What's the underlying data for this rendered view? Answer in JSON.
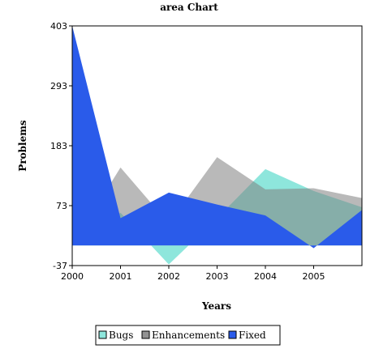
{
  "chart_data": {
    "type": "area",
    "title": "area Chart",
    "xlabel": "Years",
    "ylabel": "Problems",
    "x": [
      2000,
      2001,
      2002,
      2003,
      2004,
      2005,
      2006
    ],
    "x_tick_labels": [
      "2000",
      "2001",
      "2002",
      "2003",
      "2004",
      "2005"
    ],
    "y_ticks": [
      -37,
      73,
      183,
      293,
      403
    ],
    "y_tick_labels": [
      "-37",
      "73",
      "183",
      "293",
      "403"
    ],
    "ylim": [
      -37,
      403
    ],
    "xlim": [
      2000,
      2006
    ],
    "baseline": 0,
    "grid": false,
    "legend_position": "bottom",
    "series": [
      {
        "name": "Bugs",
        "color": "#8ee6dc",
        "opacity": 1,
        "values": [
          0,
          60,
          -35,
          50,
          140,
          100,
          70
        ]
      },
      {
        "name": "Enhancements",
        "color": "#7f7f7f",
        "opacity": 0.55,
        "values": [
          0,
          143,
          40,
          162,
          103,
          105,
          87
        ]
      },
      {
        "name": "Fixed",
        "color": "#2a5bea",
        "opacity": 1,
        "values": [
          403,
          50,
          97,
          75,
          55,
          -5,
          65
        ]
      }
    ]
  }
}
